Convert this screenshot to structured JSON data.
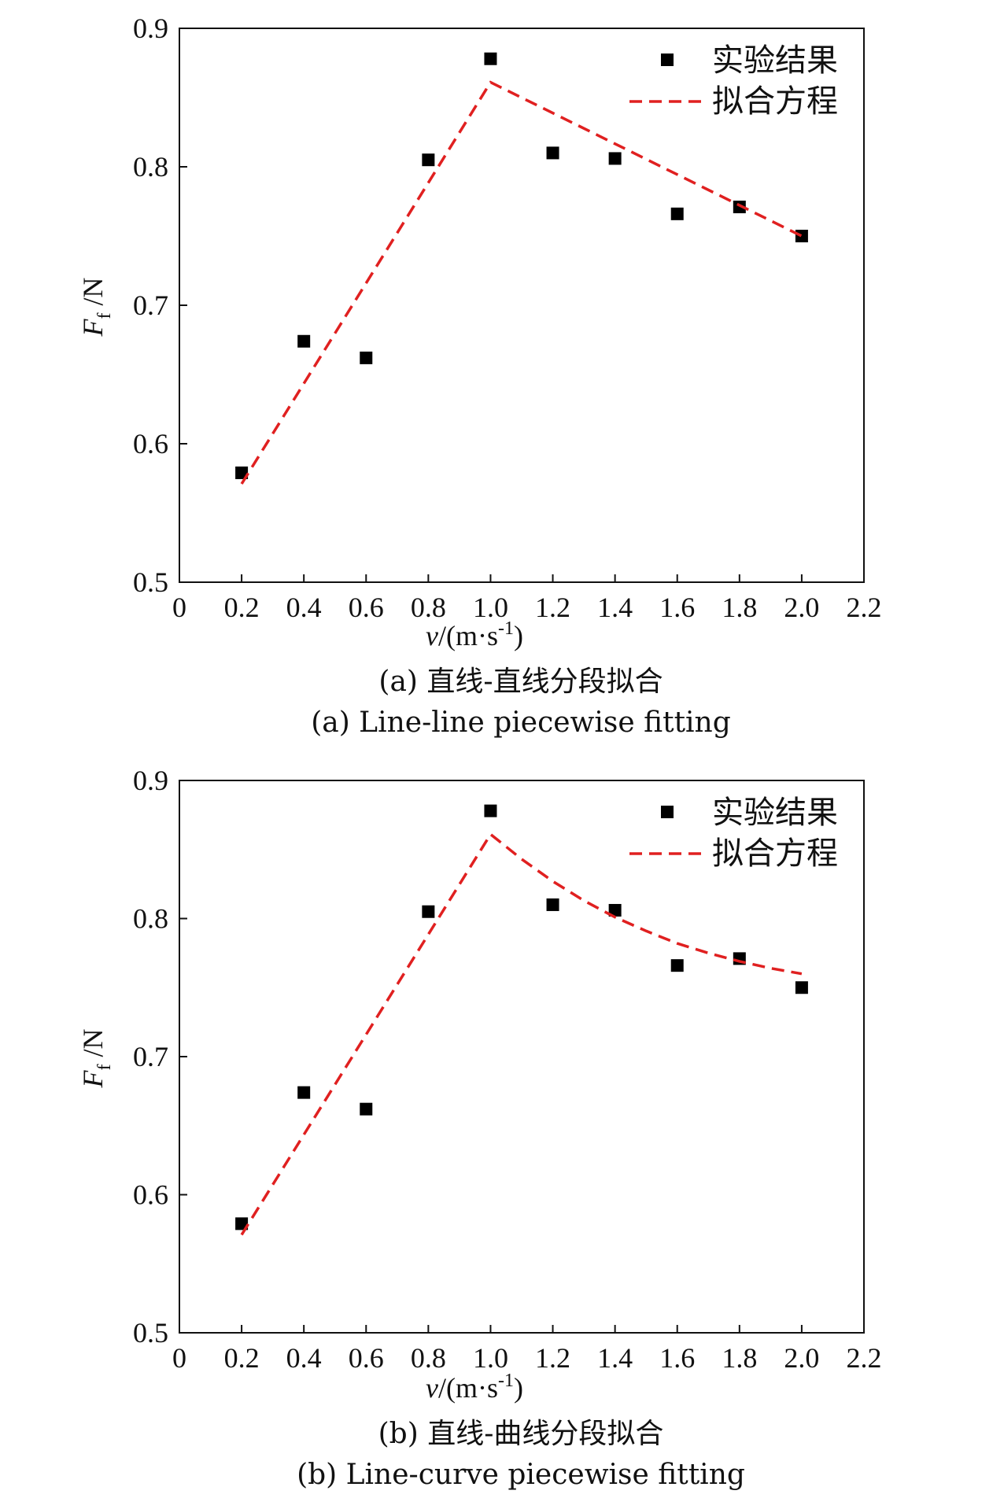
{
  "chart_data": [
    {
      "type": "scatter",
      "xlabel": {
        "var": "v",
        "rest": "/(m·s",
        "sup": "-1",
        "close": ")"
      },
      "ylabel": {
        "var": "F",
        "sub": "f",
        "rest": "/N"
      },
      "xlim": [
        0,
        2.2
      ],
      "ylim": [
        0.5,
        0.9
      ],
      "xticks": [
        0,
        0.2,
        0.4,
        0.6,
        0.8,
        1.0,
        1.2,
        1.4,
        1.6,
        1.8,
        2.0,
        2.2
      ],
      "xtick_labels": [
        "0",
        "0.2",
        "0.4",
        "0.6",
        "0.8",
        "1.0",
        "1.2",
        "1.4",
        "1.6",
        "1.8",
        "2.0",
        "2.2"
      ],
      "yticks": [
        0.5,
        0.6,
        0.7,
        0.8,
        0.9
      ],
      "ytick_labels": [
        "0.5",
        "0.6",
        "0.7",
        "0.8",
        "0.9"
      ],
      "legend": {
        "placement": "top-right",
        "entries": [
          "实验结果",
          "拟合方程"
        ]
      },
      "grid": false,
      "series": [
        {
          "name": "实验结果",
          "kind": "scatter",
          "color": "#000000",
          "x": [
            0.2,
            0.4,
            0.6,
            0.8,
            1.0,
            1.2,
            1.4,
            1.6,
            1.8,
            2.0
          ],
          "y": [
            0.579,
            0.674,
            0.662,
            0.805,
            0.878,
            0.81,
            0.806,
            0.766,
            0.771,
            0.75
          ]
        },
        {
          "name": "拟合方程",
          "kind": "line",
          "dash": true,
          "color": "#e02020",
          "x": [
            0.2,
            1.0,
            2.0
          ],
          "y": [
            0.571,
            0.861,
            0.75
          ]
        }
      ],
      "caption_cn": "(a) 直线-直线分段拟合",
      "caption_en": "(a) Line-line piecewise fitting"
    },
    {
      "type": "scatter",
      "xlabel": {
        "var": "v",
        "rest": "/(m·s",
        "sup": "-1",
        "close": ")"
      },
      "ylabel": {
        "var": "F",
        "sub": "f",
        "rest": "/N"
      },
      "xlim": [
        0,
        2.2
      ],
      "ylim": [
        0.5,
        0.9
      ],
      "xticks": [
        0,
        0.2,
        0.4,
        0.6,
        0.8,
        1.0,
        1.2,
        1.4,
        1.6,
        1.8,
        2.0,
        2.2
      ],
      "xtick_labels": [
        "0",
        "0.2",
        "0.4",
        "0.6",
        "0.8",
        "1.0",
        "1.2",
        "1.4",
        "1.6",
        "1.8",
        "2.0",
        "2.2"
      ],
      "yticks": [
        0.5,
        0.6,
        0.7,
        0.8,
        0.9
      ],
      "ytick_labels": [
        "0.5",
        "0.6",
        "0.7",
        "0.8",
        "0.9"
      ],
      "legend": {
        "placement": "top-right",
        "entries": [
          "实验结果",
          "拟合方程"
        ]
      },
      "grid": false,
      "series": [
        {
          "name": "实验结果",
          "kind": "scatter",
          "color": "#000000",
          "x": [
            0.2,
            0.4,
            0.6,
            0.8,
            1.0,
            1.2,
            1.4,
            1.6,
            1.8,
            2.0
          ],
          "y": [
            0.579,
            0.674,
            0.662,
            0.805,
            0.878,
            0.81,
            0.806,
            0.766,
            0.771,
            0.75
          ]
        },
        {
          "name": "拟合方程",
          "kind": "line",
          "dash": true,
          "color": "#e02020",
          "x": [
            0.2,
            1.0,
            1.1,
            1.2,
            1.3,
            1.4,
            1.5,
            1.6,
            1.7,
            1.8,
            1.9,
            2.0
          ],
          "y": [
            0.571,
            0.861,
            0.843,
            0.827,
            0.813,
            0.801,
            0.791,
            0.782,
            0.775,
            0.769,
            0.764,
            0.76
          ]
        }
      ],
      "caption_cn": "(b) 直线-曲线分段拟合",
      "caption_en": "(b) Line-curve piecewise fitting"
    }
  ]
}
